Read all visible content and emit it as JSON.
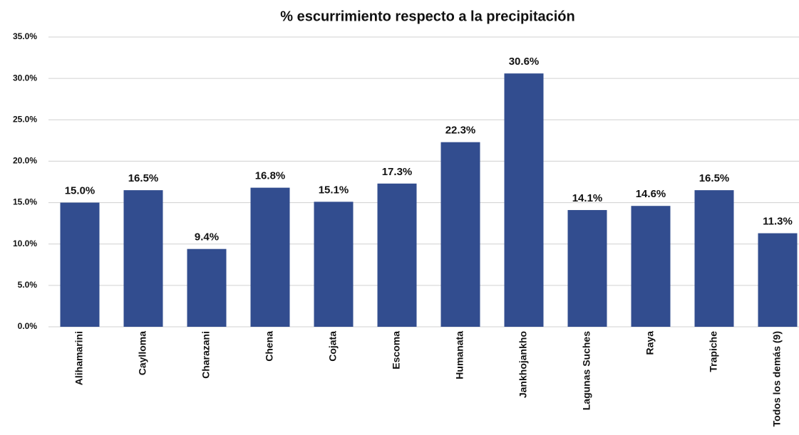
{
  "chart_data": {
    "type": "bar",
    "title": "% escurrimiento respecto a la precipitación",
    "categories": [
      "Alihamarini",
      "Caylloma",
      "Charazani",
      "Chena",
      "Cojata",
      "Escoma",
      "Humanata",
      "Jankhojankho",
      "Lagunas Suches",
      "Raya",
      "Trapiche",
      "Todos los demás (9)"
    ],
    "values": [
      15.0,
      16.5,
      9.4,
      16.8,
      15.1,
      17.3,
      22.3,
      30.6,
      14.1,
      14.6,
      16.5,
      11.3
    ],
    "value_labels": [
      "15.0%",
      "16.5%",
      "9.4%",
      "16.8%",
      "15.1%",
      "17.3%",
      "22.3%",
      "30.6%",
      "14.1%",
      "14.6%",
      "16.5%",
      "11.3%"
    ],
    "color": "#324d8f",
    "ylim": [
      0,
      35
    ],
    "yticks": [
      {
        "value": 0,
        "label": "0.0%"
      },
      {
        "value": 5,
        "label": "5.0%"
      },
      {
        "value": 10,
        "label": "10.0%"
      },
      {
        "value": 15,
        "label": "15.0%"
      },
      {
        "value": 20,
        "label": "20.0%"
      },
      {
        "value": 25,
        "label": "25.0%"
      },
      {
        "value": 30,
        "label": "30.0%"
      },
      {
        "value": 35,
        "label": "35.0%"
      }
    ],
    "grid": true
  }
}
